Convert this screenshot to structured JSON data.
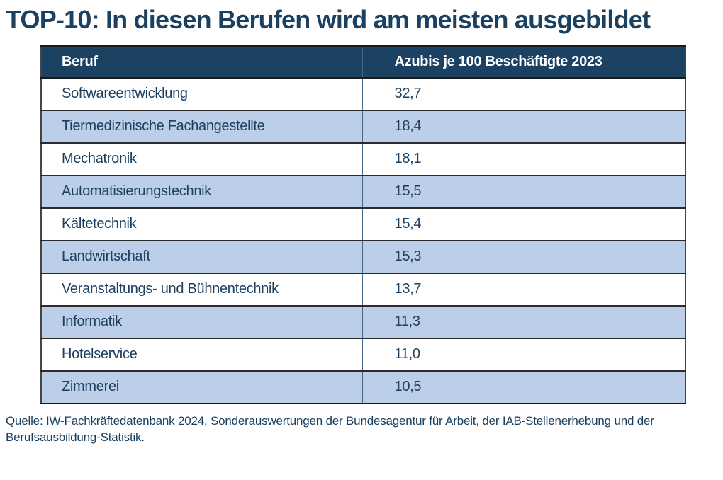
{
  "page": {
    "title": "TOP-10: In diesen Berufen wird am meisten ausgebildet",
    "source": "Quelle: IW-Fachkräftedatenbank 2024, Sonderauswertungen der Bundesagentur für Arbeit, der IAB-Stellenerhebung und der Berufsausbildung-Statistik."
  },
  "colors": {
    "title_text": "#1B4060",
    "header_bg": "#1C4263",
    "header_text": "#FFFFFF",
    "body_text": "#1B4060",
    "row_bg": "#FFFFFF",
    "row_alt_bg": "#BDCEE9",
    "row_border": "#2B2B2B",
    "column_divider": "#44678A"
  },
  "chart_data": {
    "type": "table",
    "title": "TOP-10: In diesen Berufen wird am meisten ausgebildet",
    "columns": [
      "Beruf",
      "Azubis je 100 Beschäftigte 2023"
    ],
    "rows": [
      {
        "beruf": "Softwareentwicklung",
        "value": "32,7"
      },
      {
        "beruf": "Tiermedizinische Fachangestellte",
        "value": "18,4"
      },
      {
        "beruf": "Mechatronik",
        "value": "18,1"
      },
      {
        "beruf": "Automatisierungstechnik",
        "value": "15,5"
      },
      {
        "beruf": "Kältetechnik",
        "value": "15,4"
      },
      {
        "beruf": "Landwirtschaft",
        "value": "15,3"
      },
      {
        "beruf": "Veranstaltungs- und Bühnentechnik",
        "value": "13,7"
      },
      {
        "beruf": "Informatik",
        "value": "11,3"
      },
      {
        "beruf": "Hotelservice",
        "value": "11,0"
      },
      {
        "beruf": "Zimmerei",
        "value": "10,5"
      }
    ],
    "values_numeric": [
      32.7,
      18.4,
      18.1,
      15.5,
      15.4,
      15.3,
      13.7,
      11.3,
      11.0,
      10.5
    ],
    "source": "Quelle: IW-Fachkräftedatenbank 2024, Sonderauswertungen der Bundesagentur für Arbeit, der IAB-Stellenerhebung und der Berufsausbildung-Statistik.",
    "layout": {
      "striped": true,
      "header_position": "top",
      "value_column_align": "left"
    }
  }
}
